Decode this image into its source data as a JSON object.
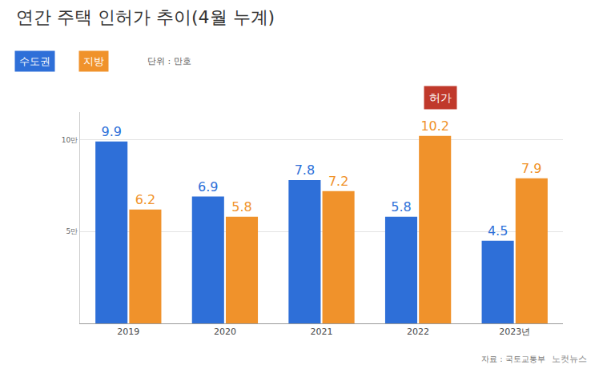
{
  "chart_data": {
    "type": "bar",
    "title": "연간 주택 인허가 추이(4월 누계)",
    "unit": "단위 : 만호",
    "source": "자료 : 국토교통부",
    "credit": "노컷뉴스",
    "annotations": [
      "허가"
    ],
    "categories": [
      "2019",
      "2020",
      "2021",
      "2022",
      "2023년"
    ],
    "series": [
      {
        "name": "수도권",
        "color": "#2e6fd8",
        "values": [
          9.9,
          6.9,
          7.8,
          5.8,
          4.5
        ]
      },
      {
        "name": "지방",
        "color": "#f0922b",
        "values": [
          6.2,
          5.8,
          7.2,
          10.2,
          7.9
        ]
      }
    ],
    "ylim": [
      0,
      11.5
    ],
    "yticks": [
      {
        "value": 5,
        "label": "5만"
      },
      {
        "value": 10,
        "label": "10만"
      }
    ],
    "grid": true,
    "legend": "top left",
    "data_labels": true
  }
}
